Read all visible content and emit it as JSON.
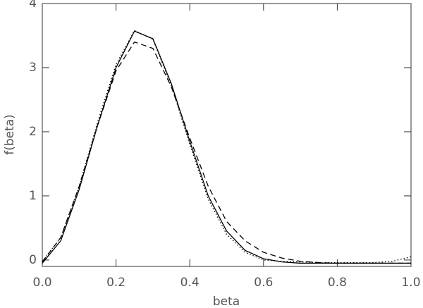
{
  "chart_data": {
    "type": "line",
    "x_label": "beta",
    "y_label": "f(beta)",
    "x": [
      0,
      0.05,
      0.1,
      0.15,
      0.2,
      0.25,
      0.3,
      0.35,
      0.4,
      0.45,
      0.5,
      0.55,
      0.6,
      0.65,
      0.7,
      0.75,
      0.8,
      0.85,
      0.9,
      0.95,
      1.0
    ],
    "series": [
      {
        "color": "#000000",
        "dash": "solid",
        "values": [
          -0.05,
          0.3,
          1.1,
          2.1,
          3.0,
          3.57,
          3.45,
          2.75,
          1.85,
          1.0,
          0.45,
          0.15,
          0.02,
          -0.03,
          -0.05,
          -0.05,
          -0.05,
          -0.05,
          -0.05,
          -0.05,
          -0.05
        ]
      },
      {
        "color": "#000000",
        "dash": "dotted",
        "values": [
          -0.02,
          0.35,
          1.15,
          2.15,
          3.05,
          3.58,
          3.44,
          2.72,
          1.8,
          0.95,
          0.4,
          0.12,
          0.0,
          -0.02,
          -0.03,
          -0.04,
          -0.04,
          -0.04,
          -0.04,
          -0.02,
          0.05
        ]
      },
      {
        "color": "#000000",
        "dash": "dashed",
        "values": [
          -0.03,
          0.35,
          1.15,
          2.1,
          2.95,
          3.4,
          3.3,
          2.7,
          1.9,
          1.15,
          0.6,
          0.3,
          0.12,
          0.03,
          -0.02,
          -0.04,
          -0.05,
          -0.05,
          -0.05,
          -0.05,
          -0.05
        ]
      }
    ],
    "xlim": [
      0,
      1.0
    ],
    "ylim": [
      -0.1,
      4.0
    ],
    "xticks": [
      {
        "value": 0,
        "label": "0.0"
      },
      {
        "value": 0.2,
        "label": "0.2"
      },
      {
        "value": 0.4,
        "label": "0.4"
      },
      {
        "value": 0.6,
        "label": "0.6"
      },
      {
        "value": 0.8,
        "label": "0.8"
      },
      {
        "value": 1.0,
        "label": "1.0"
      }
    ],
    "yticks": [
      0,
      1,
      2,
      3,
      4
    ]
  }
}
